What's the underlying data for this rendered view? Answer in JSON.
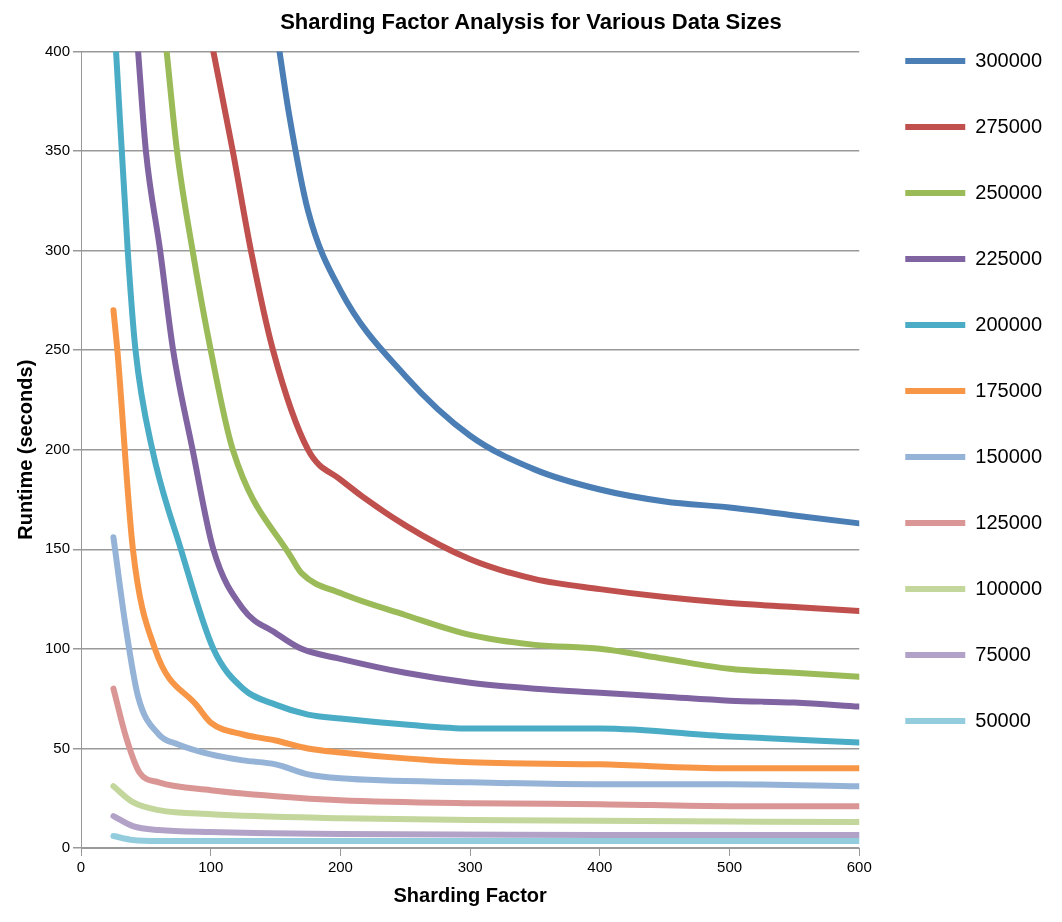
{
  "chart_data": {
    "type": "line",
    "title": "Sharding Factor Analysis for Various Data Sizes",
    "xlabel": "Sharding Factor",
    "ylabel": "Runtime (seconds)",
    "xlim": [
      0,
      600
    ],
    "xticks": [
      0,
      100,
      200,
      300,
      400,
      500,
      600
    ],
    "ylim": [
      0,
      400
    ],
    "yticks": [
      0,
      50,
      100,
      150,
      200,
      250,
      300,
      350,
      400
    ],
    "grid": "y",
    "legend": "right",
    "marker": "none",
    "line_style": "solid",
    "series": [
      {
        "name": "300000",
        "color": "#4a7eb5",
        "x": [
          153,
          160,
          175,
          200,
          250,
          300,
          350,
          400,
          450,
          500,
          550,
          600
        ],
        "values": [
          400,
          370,
          320,
          280,
          237,
          207,
          190,
          180,
          174,
          171,
          167,
          163
        ]
      },
      {
        "name": "275000",
        "color": "#c0504d",
        "x": [
          102,
          117,
          131,
          148,
          175,
          200,
          250,
          300,
          350,
          400,
          450,
          500,
          550,
          600
        ],
        "values": [
          400,
          350,
          300,
          250,
          200,
          185,
          162,
          145,
          135,
          130,
          126,
          123,
          121,
          119
        ]
      },
      {
        "name": "250000",
        "color": "#9bbb59",
        "x": [
          66,
          74,
          86,
          100,
          117,
          163,
          170,
          200,
          250,
          300,
          350,
          400,
          450,
          500,
          550,
          600
        ],
        "values": [
          400,
          350,
          300,
          250,
          200,
          145,
          138,
          128,
          117,
          107,
          102,
          100,
          95,
          90,
          88,
          86
        ]
      },
      {
        "name": "225000",
        "color": "#8064a2",
        "x": [
          44,
          50,
          61,
          71,
          86,
          102,
          125,
          150,
          170,
          200,
          250,
          300,
          350,
          400,
          450,
          500,
          550,
          600
        ],
        "values": [
          400,
          350,
          300,
          250,
          200,
          150,
          120,
          108,
          100,
          95,
          88,
          83,
          80,
          78,
          76,
          74,
          73,
          71
        ]
      },
      {
        "name": "200000",
        "color": "#4bacc6",
        "x": [
          27,
          36,
          42,
          55,
          77,
          102,
          125,
          150,
          175,
          200,
          250,
          300,
          400,
          500,
          600
        ],
        "values": [
          400,
          300,
          250,
          200,
          150,
          100,
          80,
          72,
          67,
          65,
          62,
          60,
          60,
          56,
          53
        ]
      },
      {
        "name": "175000",
        "color": "#f79646",
        "x": [
          25,
          28,
          40,
          57,
          90,
          100,
          125,
          150,
          175,
          200,
          250,
          300,
          400,
          500,
          600
        ],
        "values": [
          270,
          250,
          150,
          100,
          71,
          63,
          57,
          54,
          50,
          48,
          45,
          43,
          42,
          40,
          40
        ]
      },
      {
        "name": "150000",
        "color": "#95b3d7",
        "x": [
          25,
          34,
          44,
          60,
          75,
          100,
          125,
          150,
          175,
          200,
          300,
          400,
          500,
          600
        ],
        "values": [
          156,
          113,
          76,
          57,
          52,
          47,
          44,
          42,
          37,
          35,
          33,
          32,
          32,
          31
        ]
      },
      {
        "name": "125000",
        "color": "#d99694",
        "x": [
          25,
          35,
          45,
          60,
          100,
          150,
          200,
          300,
          400,
          500,
          600
        ],
        "values": [
          80,
          55,
          38,
          33,
          29,
          26,
          24,
          22.5,
          22,
          21,
          21
        ]
      },
      {
        "name": "100000",
        "color": "#c3d69b",
        "x": [
          25,
          40,
          60,
          100,
          200,
          300,
          600
        ],
        "values": [
          31,
          23,
          19,
          17,
          15,
          14,
          13
        ]
      },
      {
        "name": "75000",
        "color": "#b3a2c7",
        "x": [
          25,
          40,
          60,
          100,
          200,
          400,
          600
        ],
        "values": [
          16,
          11,
          9,
          8,
          7,
          6.5,
          6.5
        ]
      },
      {
        "name": "50000",
        "color": "#93cddd",
        "x": [
          25,
          40,
          60,
          600
        ],
        "values": [
          6,
          4,
          3.5,
          3.5
        ]
      }
    ]
  }
}
